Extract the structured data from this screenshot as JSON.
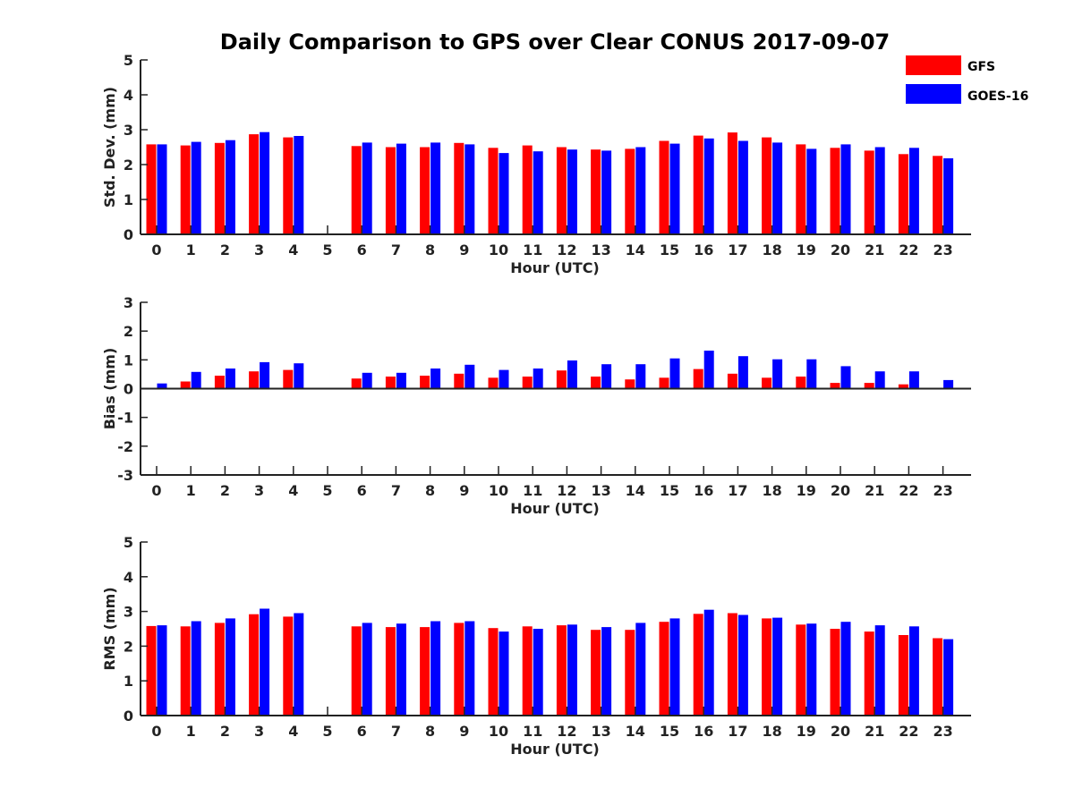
{
  "chart_data": {
    "title": "Daily Comparison to GPS over Clear CONUS 2017-09-07",
    "colors": {
      "GFS": "#ff0000",
      "GOES-16": "#0000ff"
    },
    "legend": {
      "placement": "top-right",
      "entries": [
        "GFS",
        "GOES-16"
      ]
    },
    "categories": [
      "0",
      "1",
      "2",
      "3",
      "4",
      "5",
      "6",
      "7",
      "8",
      "9",
      "10",
      "11",
      "12",
      "13",
      "14",
      "15",
      "16",
      "17",
      "18",
      "19",
      "20",
      "21",
      "22",
      "23"
    ],
    "panels": [
      {
        "type": "bar",
        "xlabel": "Hour (UTC)",
        "ylabel": "Std. Dev. (mm)",
        "ylim": [
          0,
          5
        ],
        "yticks": [
          "0",
          "1",
          "2",
          "3",
          "4",
          "5"
        ],
        "series": [
          {
            "name": "GFS",
            "values": [
              2.58,
              2.55,
              2.62,
              2.87,
              2.78,
              null,
              2.53,
              2.5,
              2.5,
              2.62,
              2.48,
              2.55,
              2.5,
              2.43,
              2.45,
              2.68,
              2.83,
              2.92,
              2.78,
              2.58,
              2.48,
              2.4,
              2.3,
              2.25
            ]
          },
          {
            "name": "GOES-16",
            "values": [
              2.58,
              2.65,
              2.7,
              2.93,
              2.82,
              null,
              2.63,
              2.6,
              2.63,
              2.58,
              2.33,
              2.38,
              2.43,
              2.4,
              2.5,
              2.6,
              2.75,
              2.68,
              2.63,
              2.45,
              2.58,
              2.5,
              2.48,
              2.18
            ]
          }
        ]
      },
      {
        "type": "bar",
        "xlabel": "Hour (UTC)",
        "ylabel": "Bias (mm)",
        "ylim": [
          -3,
          3
        ],
        "yticks": [
          "-3",
          "-2",
          "-1",
          "0",
          "1",
          "2",
          "3"
        ],
        "series": [
          {
            "name": "GFS",
            "values": [
              0.02,
              0.25,
              0.45,
              0.6,
              0.65,
              null,
              0.35,
              0.42,
              0.45,
              0.52,
              0.38,
              0.42,
              0.63,
              0.42,
              0.32,
              0.38,
              0.68,
              0.52,
              0.38,
              0.42,
              0.2,
              0.2,
              0.15,
              0.0
            ]
          },
          {
            "name": "GOES-16",
            "values": [
              0.18,
              0.58,
              0.7,
              0.92,
              0.88,
              null,
              0.55,
              0.55,
              0.7,
              0.83,
              0.65,
              0.7,
              0.98,
              0.85,
              0.85,
              1.05,
              1.32,
              1.13,
              1.02,
              1.02,
              0.78,
              0.6,
              0.6,
              0.3
            ]
          }
        ]
      },
      {
        "type": "bar",
        "xlabel": "Hour (UTC)",
        "ylabel": "RMS (mm)",
        "ylim": [
          0,
          5
        ],
        "yticks": [
          "0",
          "1",
          "2",
          "3",
          "4",
          "5"
        ],
        "series": [
          {
            "name": "GFS",
            "values": [
              2.58,
              2.57,
              2.67,
              2.92,
              2.85,
              null,
              2.57,
              2.55,
              2.55,
              2.67,
              2.52,
              2.57,
              2.6,
              2.47,
              2.47,
              2.7,
              2.93,
              2.95,
              2.8,
              2.62,
              2.5,
              2.42,
              2.32,
              2.23
            ]
          },
          {
            "name": "GOES-16",
            "values": [
              2.6,
              2.72,
              2.8,
              3.08,
              2.95,
              null,
              2.67,
              2.65,
              2.72,
              2.72,
              2.42,
              2.5,
              2.62,
              2.55,
              2.67,
              2.8,
              3.05,
              2.9,
              2.82,
              2.65,
              2.7,
              2.6,
              2.57,
              2.2
            ]
          }
        ]
      }
    ]
  }
}
